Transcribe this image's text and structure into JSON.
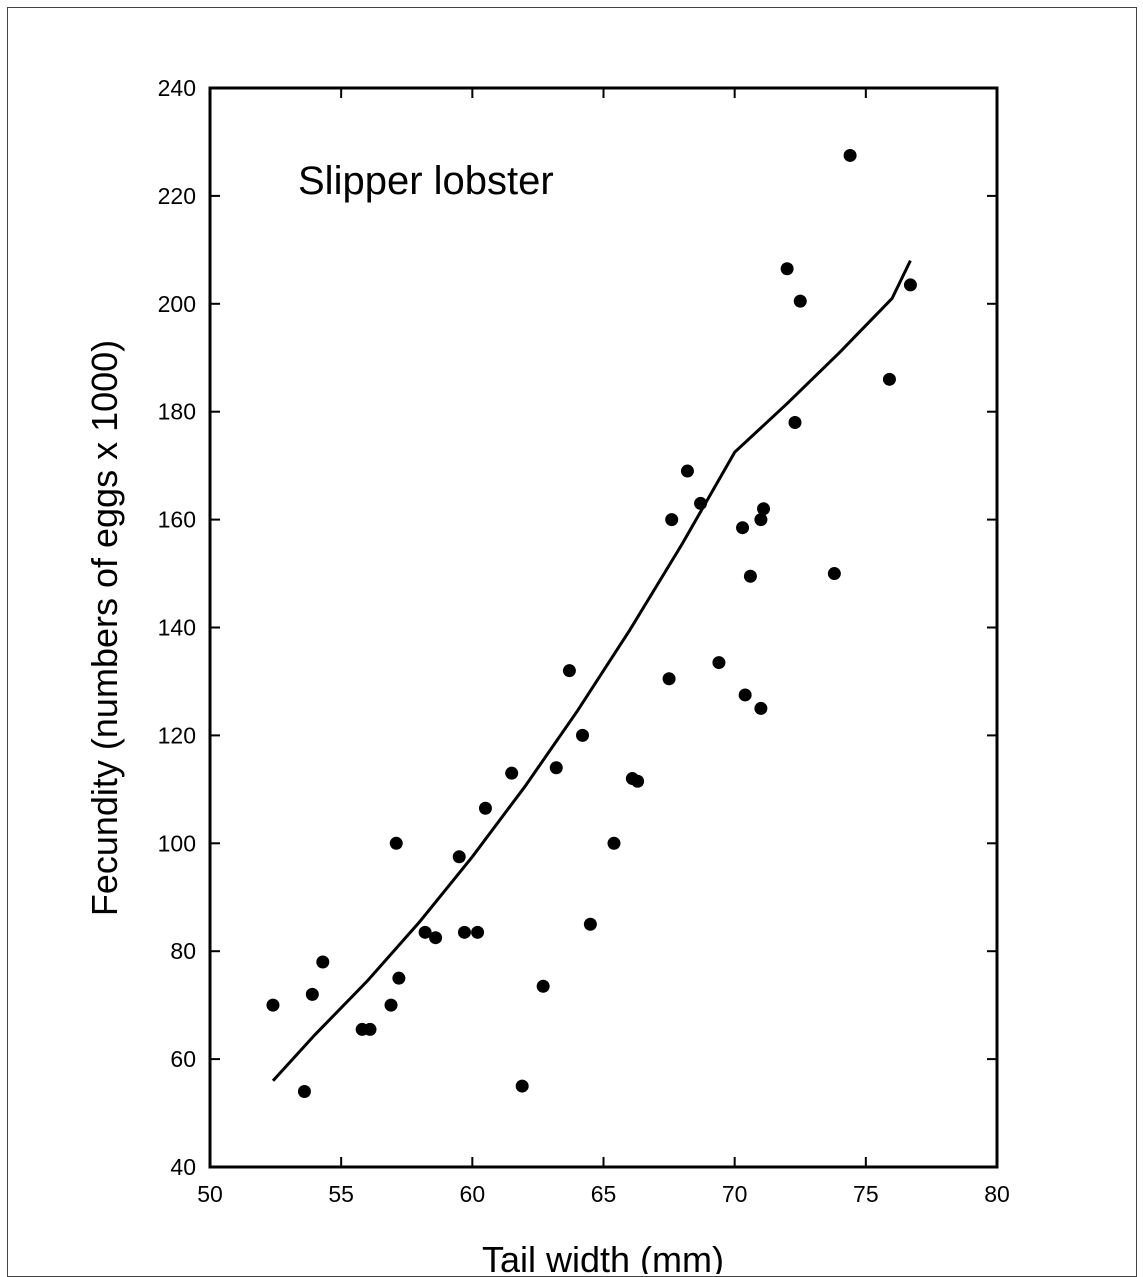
{
  "chart_data": {
    "type": "scatter",
    "annotation": "Slipper lobster",
    "xlabel": "Tail width (mm)",
    "ylabel": "Fecundity (numbers of eggs x 1000)",
    "xlim": [
      50,
      80
    ],
    "ylim": [
      40,
      240
    ],
    "xticks": [
      50,
      55,
      60,
      65,
      70,
      75,
      80
    ],
    "yticks": [
      40,
      60,
      80,
      100,
      120,
      140,
      160,
      180,
      200,
      220,
      240
    ],
    "grid": false,
    "points": [
      [
        52.4,
        70
      ],
      [
        53.6,
        54
      ],
      [
        53.9,
        72
      ],
      [
        54.3,
        78
      ],
      [
        55.8,
        65.5
      ],
      [
        56.1,
        65.5
      ],
      [
        56.9,
        70
      ],
      [
        57.1,
        100
      ],
      [
        57.2,
        75
      ],
      [
        58.2,
        83.5
      ],
      [
        58.6,
        82.5
      ],
      [
        59.5,
        97.5
      ],
      [
        59.7,
        83.5
      ],
      [
        60.2,
        83.5
      ],
      [
        60.5,
        106.5
      ],
      [
        61.5,
        113
      ],
      [
        61.9,
        55
      ],
      [
        62.7,
        73.5
      ],
      [
        63.2,
        114
      ],
      [
        63.7,
        132
      ],
      [
        64.2,
        120
      ],
      [
        64.5,
        85
      ],
      [
        65.4,
        100
      ],
      [
        66.1,
        112
      ],
      [
        66.3,
        111.5
      ],
      [
        67.5,
        130.5
      ],
      [
        67.6,
        160
      ],
      [
        68.2,
        169
      ],
      [
        68.7,
        163
      ],
      [
        69.4,
        133.5
      ],
      [
        70.3,
        158.5
      ],
      [
        70.4,
        127.5
      ],
      [
        70.6,
        149.5
      ],
      [
        71.0,
        125
      ],
      [
        71.0,
        160
      ],
      [
        71.1,
        162
      ],
      [
        72.0,
        206.5
      ],
      [
        72.3,
        178
      ],
      [
        72.5,
        200.5
      ],
      [
        73.8,
        150
      ],
      [
        74.4,
        227.5
      ],
      [
        75.9,
        186
      ],
      [
        76.7,
        203.5
      ]
    ],
    "fit_curve": {
      "x": [
        52.4,
        54,
        56,
        58,
        60,
        62,
        64,
        66,
        68,
        70,
        72,
        74,
        76,
        76.7
      ],
      "y": [
        56,
        64.5,
        74.5,
        85.5,
        97.5,
        110.5,
        124.5,
        139.5,
        155.5,
        172.5,
        181.5,
        191,
        201,
        208
      ]
    }
  }
}
